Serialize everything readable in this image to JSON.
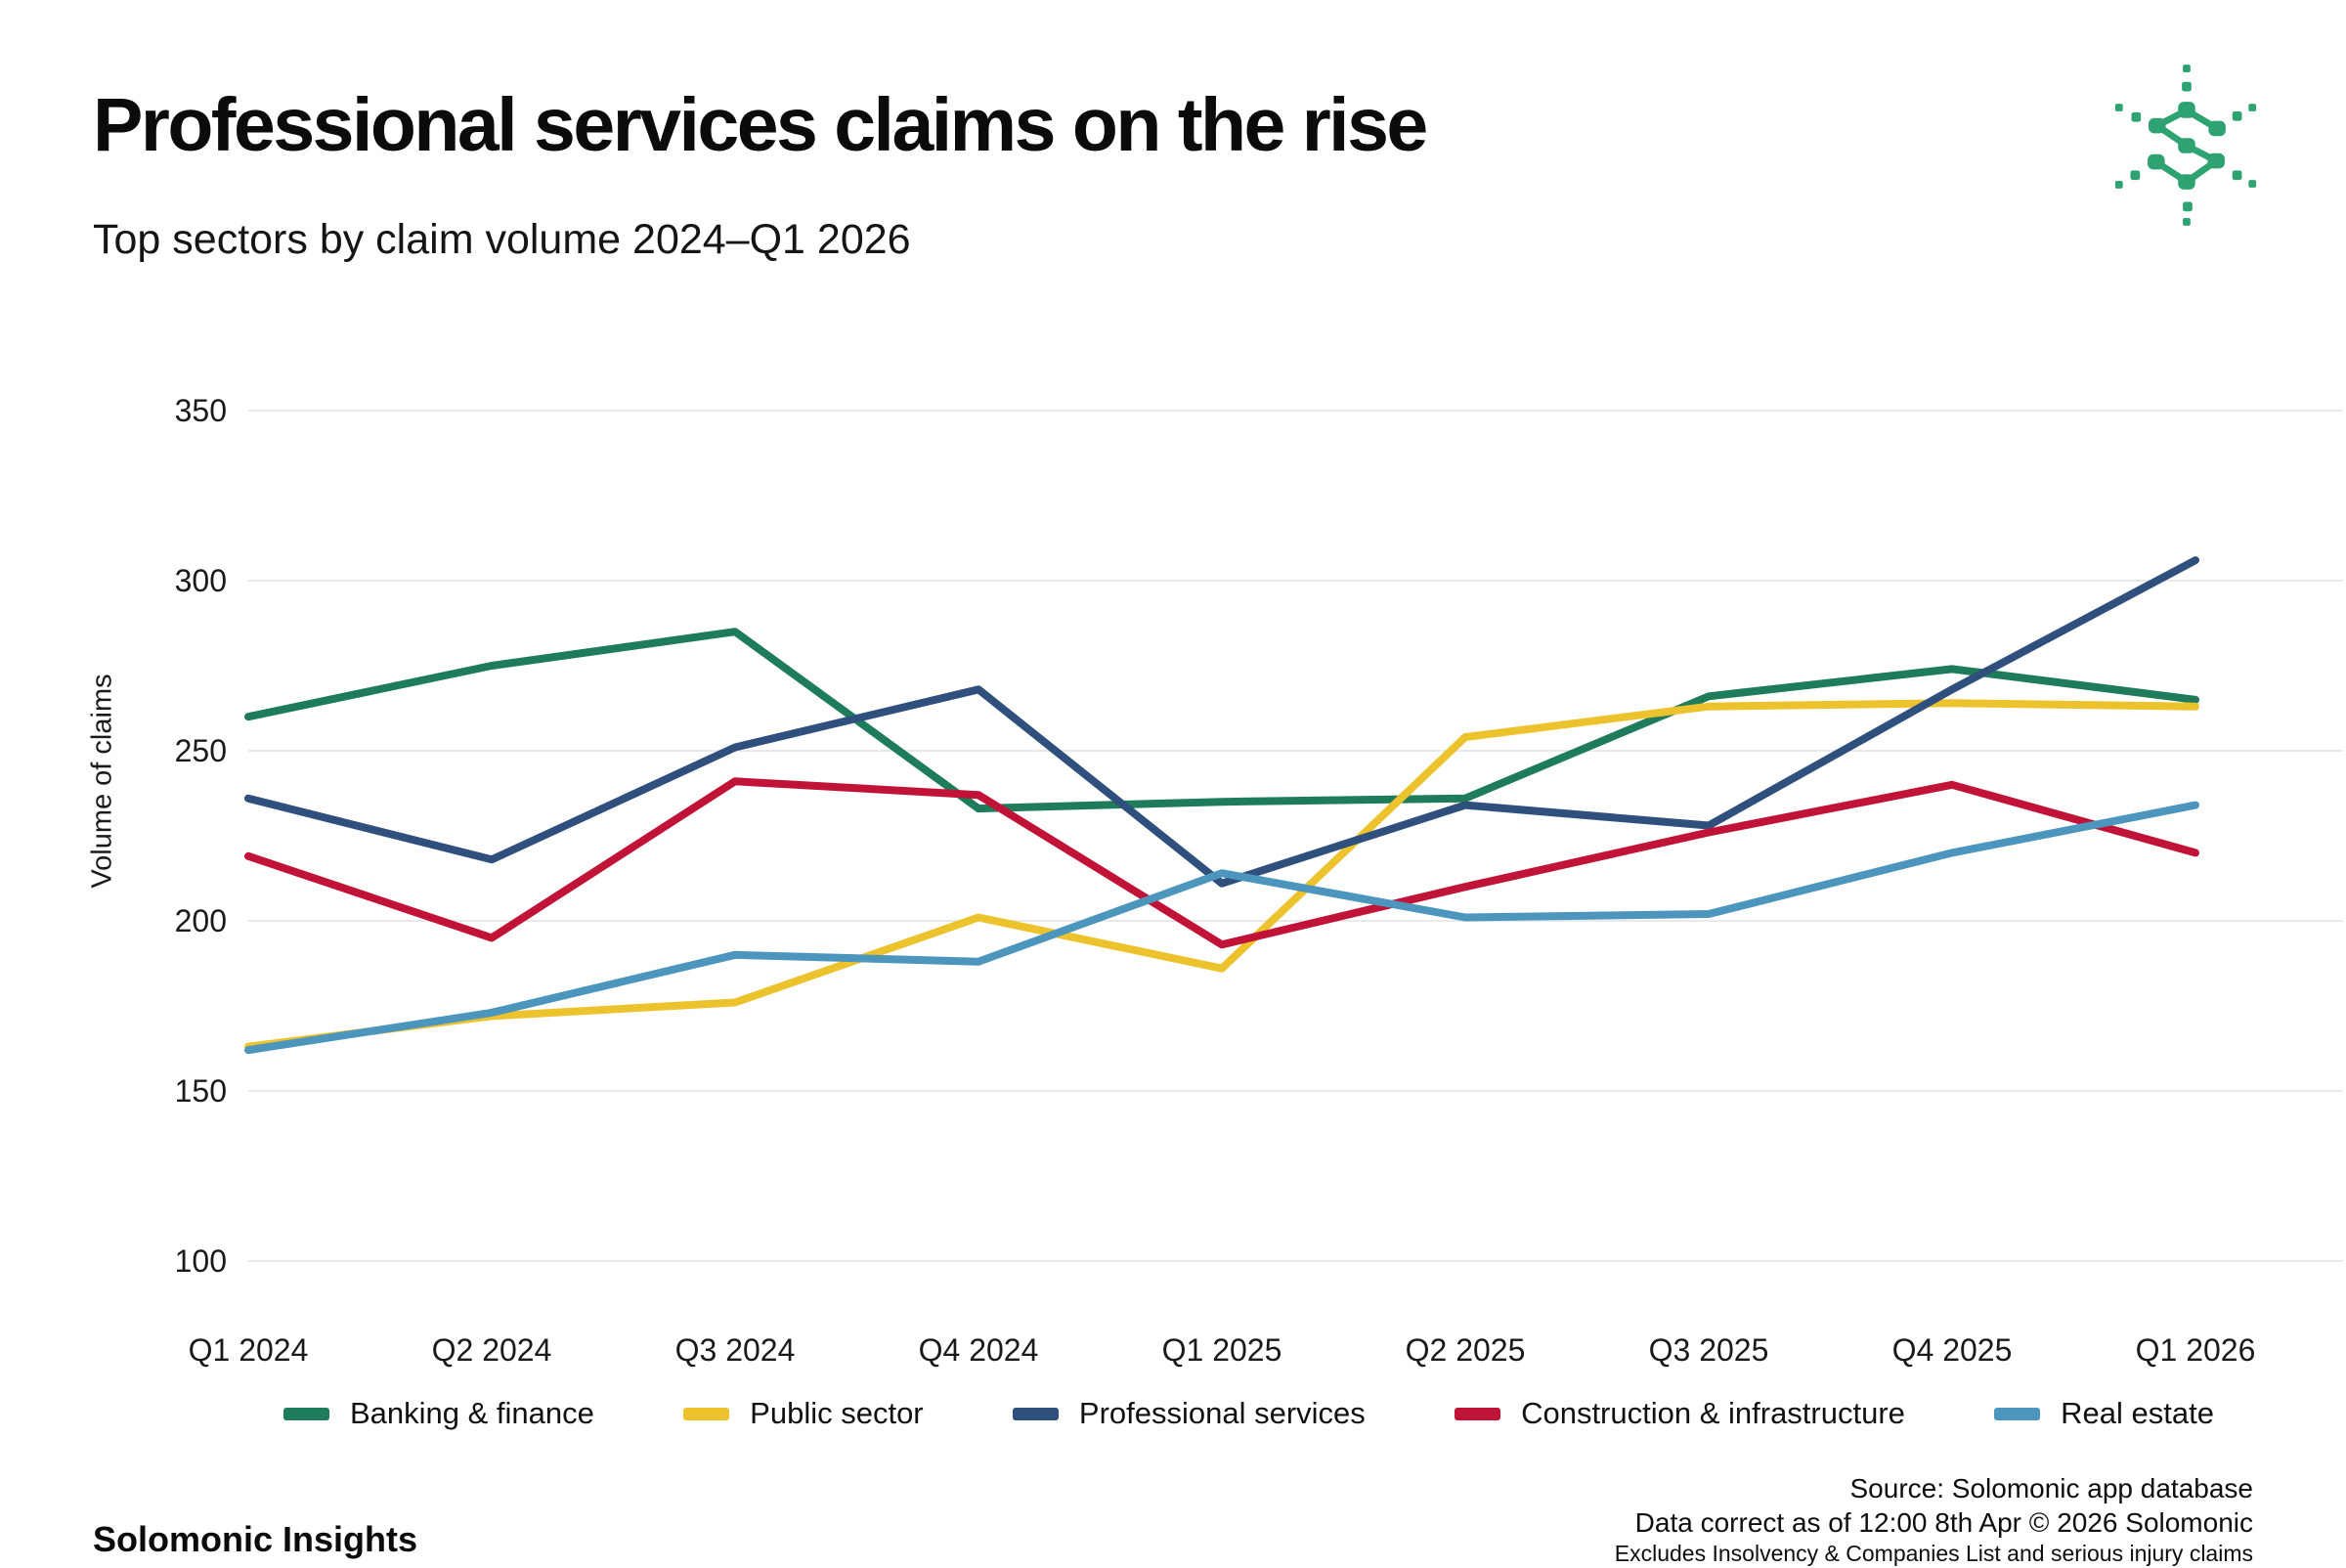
{
  "page": {
    "background": "#ffffff"
  },
  "header": {
    "title": "Professional services claims on the rise",
    "subtitle": "Top sectors by claim volume 2024–Q1 2026"
  },
  "logo": {
    "label": "solomonic-logo",
    "color": "#2fa271"
  },
  "chart_data": {
    "type": "line",
    "title": "Professional services claims on the rise",
    "subtitle": "Top sectors by claim volume 2024–Q1 2026",
    "ylabel": "Volume of claims",
    "xlabel": "",
    "ylim": [
      96,
      352
    ],
    "yticks": [
      350,
      300,
      250,
      200,
      150,
      100
    ],
    "grid": "horizontal-only",
    "grid_color": "#e9e9ea",
    "legend_position": "bottom",
    "categories": [
      "Q1 2024",
      "Q2 2024",
      "Q3 2024",
      "Q4 2024",
      "Q1 2025",
      "Q2 2025",
      "Q3 2025",
      "Q4 2025",
      "Q1 2026"
    ],
    "series": [
      {
        "name": "Banking & finance",
        "color": "#1f7c5a",
        "values": [
          260,
          275,
          285,
          233,
          235,
          236,
          266,
          274,
          265
        ]
      },
      {
        "name": "Public sector",
        "color": "#ecc32d",
        "values": [
          163,
          172,
          176,
          201,
          186,
          254,
          263,
          264,
          263
        ]
      },
      {
        "name": "Professional services",
        "color": "#2f4f7d",
        "values": [
          236,
          218,
          251,
          268,
          211,
          234,
          228,
          268,
          306
        ]
      },
      {
        "name": "Construction & infrastructure",
        "color": "#c11237",
        "values": [
          219,
          195,
          241,
          237,
          193,
          210,
          226,
          240,
          220
        ]
      },
      {
        "name": "Real estate",
        "color": "#4c95bd",
        "values": [
          162,
          173,
          190,
          188,
          214,
          201,
          202,
          220,
          234
        ]
      }
    ]
  },
  "footer": {
    "brand": "Solomonic Insights",
    "source_lines": [
      "Source: Solomonic app database",
      "Data correct as of 12:00 8th Apr © 2026 Solomonic",
      "Excludes Insolvency & Companies List and serious injury claims"
    ]
  }
}
